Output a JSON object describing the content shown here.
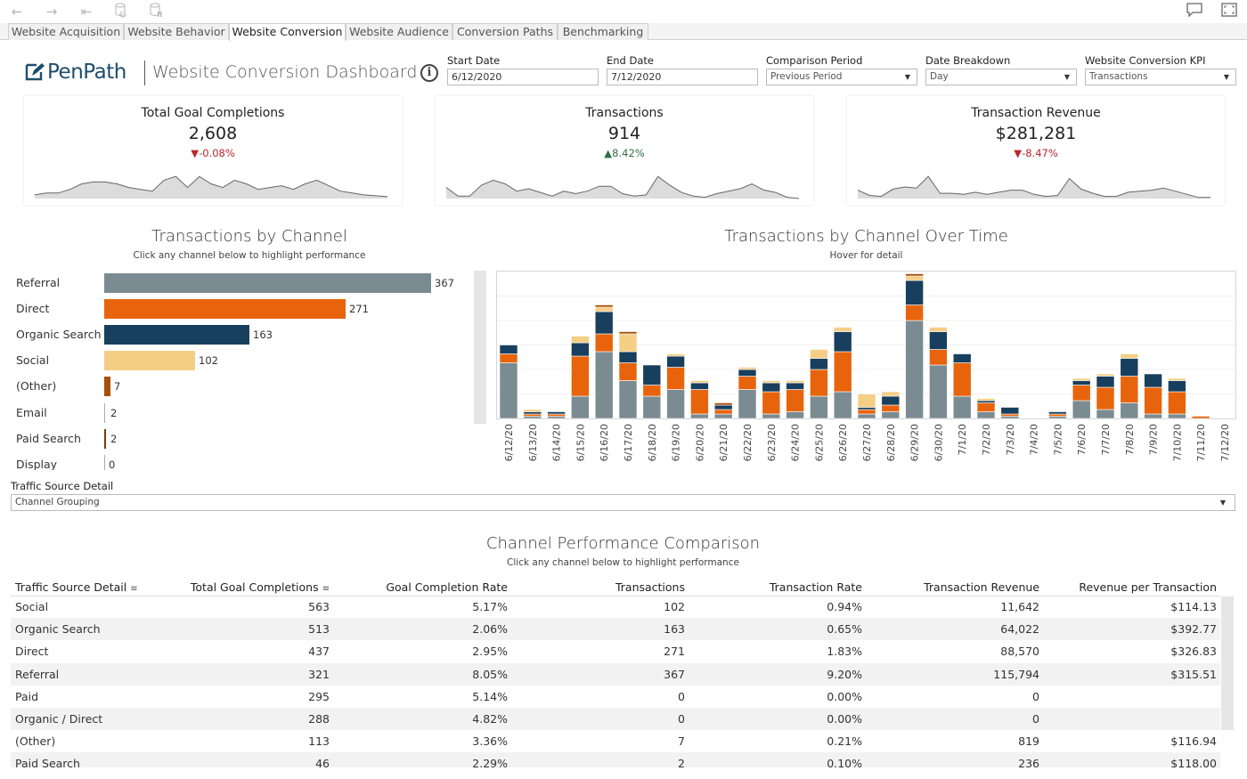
{
  "toolbar": {
    "icons": [
      "back-icon",
      "forward-icon",
      "revert-icon",
      "refresh-data-icon",
      "pause-updates-icon",
      "comment-icon",
      "fullscreen-icon"
    ]
  },
  "tabs": [
    {
      "label": "Website Acquisition"
    },
    {
      "label": "Website Behavior"
    },
    {
      "label": "Website Conversion"
    },
    {
      "label": "Website Audience"
    },
    {
      "label": "Conversion Paths"
    },
    {
      "label": "Benchmarking"
    }
  ],
  "header": {
    "logo_text": "PenPath",
    "title": "Website Conversion Dashboard",
    "info_glyph": "i"
  },
  "filters": {
    "start_date": {
      "label": "Start Date",
      "value": "6/12/2020"
    },
    "end_date": {
      "label": "End Date",
      "value": "7/12/2020"
    },
    "comparison_period": {
      "label": "Comparison Period",
      "value": "Previous Period"
    },
    "date_breakdown": {
      "label": "Date Breakdown",
      "value": "Day"
    },
    "kpi": {
      "label": "Website Conversion KPI",
      "value": "Transactions"
    }
  },
  "kpis": [
    {
      "title": "Total Goal Completions",
      "value": "2,608",
      "delta": "-0.08%",
      "direction": "down",
      "spark": [
        2,
        3,
        3,
        5,
        8,
        9,
        9,
        8,
        6,
        5,
        4,
        10,
        12,
        6,
        12,
        8,
        6,
        10,
        8,
        5,
        6,
        7,
        5,
        8,
        10,
        7,
        4,
        3,
        2,
        1.5,
        1
      ]
    },
    {
      "title": "Transactions",
      "value": "914",
      "delta": "8.42%",
      "direction": "up",
      "spark": [
        9,
        2,
        2,
        11,
        15,
        12,
        6,
        8,
        5,
        2,
        6,
        4,
        6,
        10,
        10,
        4,
        2,
        3,
        18,
        11,
        5,
        2,
        1,
        4,
        6,
        8,
        12,
        7,
        5,
        1,
        0
      ]
    },
    {
      "title": "Transaction Revenue",
      "value": "$281,281",
      "delta": "-8.47%",
      "direction": "down",
      "spark": [
        8,
        3,
        2,
        9,
        11,
        10,
        21,
        5,
        5,
        4,
        6,
        4,
        6,
        8,
        8,
        4,
        2,
        3,
        19,
        9,
        5,
        2,
        2,
        6,
        7,
        8,
        10,
        7,
        4,
        1,
        1
      ]
    }
  ],
  "colors": {
    "referral": "#7b8b92",
    "direct": "#e8640c",
    "organic_search": "#183f5e",
    "social": "#f5ce86",
    "other": "#a84f0a",
    "email": "#aaaaaa",
    "paid_search": "#7a3a0c",
    "spark_fill": "#dcdcdc",
    "spark_line": "#666666",
    "delta_down": "#b9262e",
    "delta_up": "#2f6f45"
  },
  "channel_bar_section": {
    "title": "Transactions by Channel",
    "subtitle": "Click any channel below to highlight performance"
  },
  "time_section": {
    "title": "Transactions by Channel Over Time",
    "subtitle": "Hover for detail"
  },
  "chart_data": [
    {
      "type": "bar",
      "title": "Transactions by Channel",
      "orientation": "horizontal",
      "categories": [
        "Referral",
        "Direct",
        "Organic Search",
        "Social",
        "(Other)",
        "Email",
        "Paid Search",
        "Display"
      ],
      "values": [
        367,
        271,
        163,
        102,
        7,
        2,
        2,
        0
      ],
      "value_labels": [
        "367",
        "271",
        "163",
        "102",
        "7",
        "2",
        "2",
        "0"
      ],
      "color_keys": [
        "referral",
        "direct",
        "organic_search",
        "social",
        "other",
        "email",
        "paid_search",
        "email"
      ],
      "xlim": [
        0,
        367
      ]
    },
    {
      "type": "bar",
      "stacked": true,
      "title": "Transactions by Channel Over Time",
      "categories": [
        "6/12/20",
        "6/13/20",
        "6/14/20",
        "6/15/20",
        "6/16/20",
        "6/17/20",
        "6/18/20",
        "6/19/20",
        "6/20/20",
        "6/21/20",
        "6/22/20",
        "6/23/20",
        "6/24/20",
        "6/25/20",
        "6/26/20",
        "6/27/20",
        "6/28/20",
        "6/29/20",
        "6/30/20",
        "7/1/20",
        "7/2/20",
        "7/3/20",
        "7/4/20",
        "7/5/20",
        "7/6/20",
        "7/7/20",
        "7/8/20",
        "7/9/20",
        "7/10/20",
        "7/11/20",
        "7/12/20"
      ],
      "series": [
        {
          "name": "Referral",
          "color_key": "referral",
          "values": [
            25,
            1,
            1,
            10,
            30,
            17,
            10,
            13,
            2,
            2,
            13,
            2,
            3,
            10,
            12,
            2,
            3,
            44,
            24,
            10,
            3,
            1,
            0,
            1,
            8,
            4,
            7,
            2,
            2,
            0,
            0
          ]
        },
        {
          "name": "Direct",
          "color_key": "direct",
          "values": [
            4,
            1,
            1,
            18,
            8,
            8,
            5,
            10,
            11,
            2,
            6,
            10,
            10,
            12,
            18,
            2,
            3,
            7,
            7,
            15,
            4,
            1,
            0,
            1,
            7,
            10,
            12,
            12,
            10,
            1,
            0
          ]
        },
        {
          "name": "Organic Search",
          "color_key": "organic_search",
          "values": [
            4,
            1,
            1,
            6,
            10,
            5,
            9,
            5,
            3,
            2,
            3,
            4,
            3,
            5,
            9,
            1,
            4,
            11,
            8,
            4,
            1,
            3,
            0,
            1,
            2,
            5,
            8,
            6,
            5,
            0,
            0
          ]
        },
        {
          "name": "Social",
          "color_key": "social",
          "values": [
            0,
            1,
            0,
            3,
            2,
            8,
            0,
            1,
            1,
            0,
            1,
            1,
            1,
            4,
            2,
            6,
            2,
            2,
            2,
            0,
            1,
            0,
            0,
            0,
            1,
            1,
            2,
            0,
            1,
            0,
            0
          ]
        },
        {
          "name": "(Other)",
          "color_key": "other",
          "values": [
            0,
            0,
            0,
            0,
            1,
            1,
            0,
            0,
            0,
            1,
            0,
            0,
            0,
            0,
            0,
            0,
            0,
            1,
            0,
            0,
            0,
            0,
            0,
            0,
            0,
            0,
            0,
            0,
            0,
            0,
            0
          ]
        }
      ],
      "ylim": [
        0,
        66
      ]
    }
  ],
  "traffic_source": {
    "label": "Traffic Source Detail",
    "value": "Channel Grouping"
  },
  "perf_section": {
    "title": "Channel Performance Comparison",
    "subtitle": "Click any channel below to highlight performance"
  },
  "table": {
    "headers": [
      "Traffic Source Detail",
      "Total Goal Completions",
      "Goal Completion Rate",
      "Transactions",
      "Transaction Rate",
      "Transaction Revenue",
      "Revenue per Transaction"
    ],
    "rows": [
      [
        "Social",
        "563",
        "5.17%",
        "102",
        "0.94%",
        "11,642",
        "$114.13"
      ],
      [
        "Organic Search",
        "513",
        "2.06%",
        "163",
        "0.65%",
        "64,022",
        "$392.77"
      ],
      [
        "Direct",
        "437",
        "2.95%",
        "271",
        "1.83%",
        "88,570",
        "$326.83"
      ],
      [
        "Referral",
        "321",
        "8.05%",
        "367",
        "9.20%",
        "115,794",
        "$315.51"
      ],
      [
        "Paid",
        "295",
        "5.14%",
        "0",
        "0.00%",
        "0",
        ""
      ],
      [
        "Organic / Direct",
        "288",
        "4.82%",
        "0",
        "0.00%",
        "0",
        ""
      ],
      [
        "(Other)",
        "113",
        "3.36%",
        "7",
        "0.21%",
        "819",
        "$116.94"
      ],
      [
        "Paid Search",
        "46",
        "2.29%",
        "2",
        "0.10%",
        "236",
        "$118.00"
      ]
    ]
  }
}
